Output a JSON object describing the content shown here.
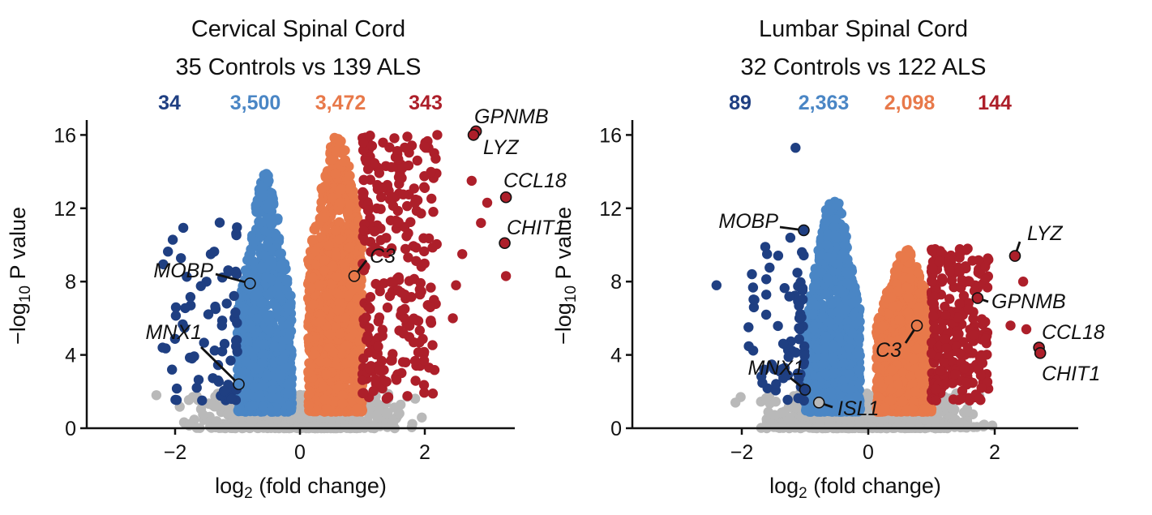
{
  "colors": {
    "down_strong": "#1f3f82",
    "down": "#4a86c5",
    "up": "#e8794a",
    "up_strong": "#ad1f2a",
    "ns": "#b9b9b9"
  },
  "chart_data": [
    {
      "type": "scatter",
      "title": "Cervical Spinal Cord",
      "subtitle": "35 Controls vs 139 ALS",
      "category_counts": [
        "34",
        "3,500",
        "3,472",
        "343"
      ],
      "xlabel": "log2 (fold change)",
      "ylabel": "−log10 P value",
      "xlim": [
        -3.4,
        3.4
      ],
      "ylim": [
        0,
        16.5
      ],
      "x_ticks": [
        -2,
        0,
        2
      ],
      "x_tick_labels": [
        "−2",
        "0",
        "2"
      ],
      "y_ticks": [
        0,
        4,
        8,
        12,
        16
      ],
      "y_tick_labels": [
        "0",
        "4",
        "8",
        "12",
        "16"
      ],
      "grid": false,
      "distribution": {
        "down_strong_xmin": -2.2,
        "down_xmin": -1.0,
        "down_peak_y": 13.9,
        "up_peak_y": 16.0,
        "up_strong_xmax": 2.2,
        "seed": 7
      },
      "extra_points": [
        {
          "x": -2.2,
          "y": 4.4,
          "group": "down_strong"
        },
        {
          "x": -2.05,
          "y": 3.2,
          "group": "down_strong"
        },
        {
          "x": -2.3,
          "y": 1.8,
          "group": "ns"
        },
        {
          "x": 2.75,
          "y": 13.5,
          "group": "up_strong"
        },
        {
          "x": 3.0,
          "y": 12.3,
          "group": "up_strong"
        },
        {
          "x": 2.9,
          "y": 11.2,
          "group": "up_strong"
        },
        {
          "x": 3.3,
          "y": 8.3,
          "group": "up_strong"
        },
        {
          "x": 2.5,
          "y": 7.8,
          "group": "up_strong"
        },
        {
          "x": 2.6,
          "y": 9.5,
          "group": "up_strong"
        },
        {
          "x": 2.45,
          "y": 6.0,
          "group": "up_strong"
        },
        {
          "x": 2.2,
          "y": 16.0,
          "group": "up_strong"
        }
      ],
      "labeled_genes": [
        {
          "name": "GPNMB",
          "x": 2.82,
          "y": 16.2,
          "group": "up_strong"
        },
        {
          "name": "LYZ",
          "x": 2.78,
          "y": 16.0,
          "group": "up_strong"
        },
        {
          "name": "CCL18",
          "x": 3.3,
          "y": 12.6,
          "group": "up_strong"
        },
        {
          "name": "CHIT1",
          "x": 3.28,
          "y": 10.1,
          "group": "up_strong"
        },
        {
          "name": "MOBP",
          "x": -0.8,
          "y": 7.9,
          "group": "down"
        },
        {
          "name": "MNX1",
          "x": -0.98,
          "y": 2.4,
          "group": "down"
        },
        {
          "name": "C3",
          "x": 0.87,
          "y": 8.3,
          "group": "up"
        }
      ]
    },
    {
      "type": "scatter",
      "title": "Lumbar Spinal Cord",
      "subtitle": "32 Controls vs 122 ALS",
      "category_counts": [
        "89",
        "2,363",
        "2,098",
        "144"
      ],
      "xlabel": "log2 (fold change)",
      "ylabel": "−log10 P value",
      "xlim": [
        -3.4,
        3.4
      ],
      "ylim": [
        0,
        16.5
      ],
      "x_ticks": [
        -2,
        0,
        2
      ],
      "x_tick_labels": [
        "−2",
        "0",
        "2"
      ],
      "y_ticks": [
        0,
        4,
        8,
        12,
        16
      ],
      "y_tick_labels": [
        "0",
        "4",
        "8",
        "12",
        "16"
      ],
      "grid": false,
      "distribution": {
        "down_strong_xmin": -1.9,
        "down_xmin": -1.0,
        "down_peak_y": 12.8,
        "up_peak_y": 9.8,
        "up_strong_xmax": 1.9,
        "seed": 13
      },
      "extra_points": [
        {
          "x": -1.15,
          "y": 15.3,
          "group": "down_strong"
        },
        {
          "x": -2.4,
          "y": 7.8,
          "group": "down_strong"
        },
        {
          "x": -1.6,
          "y": 9.5,
          "group": "down_strong"
        },
        {
          "x": -1.8,
          "y": 7.0,
          "group": "down_strong"
        },
        {
          "x": -2.1,
          "y": 1.4,
          "group": "ns"
        },
        {
          "x": 1.9,
          "y": 9.2,
          "group": "up_strong"
        },
        {
          "x": 2.45,
          "y": 8.0,
          "group": "up_strong"
        },
        {
          "x": 2.25,
          "y": 5.6,
          "group": "up_strong"
        },
        {
          "x": 2.5,
          "y": 5.4,
          "group": "up_strong"
        },
        {
          "x": 1.85,
          "y": 5.8,
          "group": "up_strong"
        }
      ],
      "labeled_genes": [
        {
          "name": "LYZ",
          "x": 2.32,
          "y": 9.4,
          "group": "up_strong"
        },
        {
          "name": "GPNMB",
          "x": 1.73,
          "y": 7.1,
          "group": "up_strong"
        },
        {
          "name": "CCL18",
          "x": 2.7,
          "y": 4.4,
          "group": "up_strong"
        },
        {
          "name": "CHIT1",
          "x": 2.72,
          "y": 4.1,
          "group": "up_strong"
        },
        {
          "name": "MOBP",
          "x": -1.02,
          "y": 10.8,
          "group": "down_strong"
        },
        {
          "name": "MNX1",
          "x": -1.0,
          "y": 2.1,
          "group": "down_strong"
        },
        {
          "name": "C3",
          "x": 0.77,
          "y": 5.6,
          "group": "up"
        },
        {
          "name": "ISL1",
          "x": -0.78,
          "y": 1.4,
          "group": "ns"
        }
      ]
    }
  ]
}
